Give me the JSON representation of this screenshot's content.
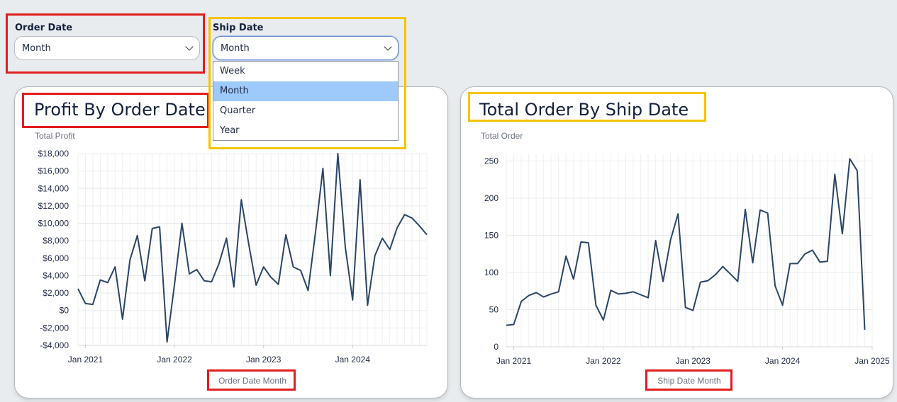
{
  "filters": {
    "order_date": {
      "label": "Order Date",
      "value": "Month"
    },
    "ship_date": {
      "label": "Ship Date",
      "value": "Month",
      "options": [
        "Week",
        "Month",
        "Quarter",
        "Year"
      ],
      "selected": "Month"
    }
  },
  "colors": {
    "line": "#2b4566",
    "highlight_red": "#e11d1d",
    "highlight_yellow": "#f5c400",
    "option_selected": "#9ec9fb"
  },
  "chart_data": [
    {
      "type": "line",
      "title": "Profit By Order Date",
      "ylabel": "Total Profit",
      "xlabel": "Order Date Month",
      "ylim": [
        -4000,
        18000
      ],
      "yticks": [
        -4000,
        -2000,
        0,
        2000,
        4000,
        6000,
        8000,
        10000,
        12000,
        14000,
        16000,
        18000
      ],
      "ytick_labels": [
        "-$4,000",
        "-$2,000",
        "$0",
        "$2,000",
        "$4,000",
        "$6,000",
        "$8,000",
        "$10,000",
        "$12,000",
        "$14,000",
        "$16,000",
        "$18,000"
      ],
      "xtick_labels": [
        "Jan 2021",
        "Jan 2022",
        "Jan 2023",
        "Jan 2024"
      ],
      "x_start": "2020-12",
      "values": [
        2500,
        800,
        700,
        3500,
        3200,
        5000,
        -1000,
        5800,
        8600,
        3400,
        9400,
        9600,
        -3600,
        3000,
        10000,
        4200,
        4700,
        3400,
        3300,
        5400,
        8300,
        2700,
        12700,
        7600,
        2900,
        5000,
        3800,
        3000,
        8700,
        5000,
        4600,
        2300,
        9000,
        16300,
        4000,
        18000,
        7300,
        1200,
        15000,
        600,
        6300,
        8300,
        7000,
        9500,
        11000,
        10600,
        9700,
        8700
      ],
      "grid": true
    },
    {
      "type": "line",
      "title": "Total Order By Ship Date",
      "ylabel": "Total Order",
      "xlabel": "Ship Date Month",
      "ylim": [
        0,
        260
      ],
      "yticks": [
        0,
        50,
        100,
        150,
        200,
        250
      ],
      "ytick_labels": [
        "0",
        "50",
        "100",
        "150",
        "200",
        "250"
      ],
      "xtick_labels": [
        "Jan 2021",
        "Jan 2022",
        "Jan 2023",
        "Jan 2024",
        "Jan 2025"
      ],
      "x_start": "2020-12",
      "values": [
        29,
        30,
        61,
        69,
        73,
        67,
        71,
        74,
        122,
        91,
        141,
        140,
        56,
        36,
        76,
        71,
        72,
        74,
        70,
        66,
        143,
        88,
        144,
        179,
        53,
        49,
        87,
        89,
        97,
        108,
        98,
        88,
        185,
        113,
        184,
        180,
        82,
        56,
        112,
        112,
        125,
        130,
        114,
        115,
        232,
        152,
        253,
        237,
        23
      ],
      "grid": true
    }
  ]
}
